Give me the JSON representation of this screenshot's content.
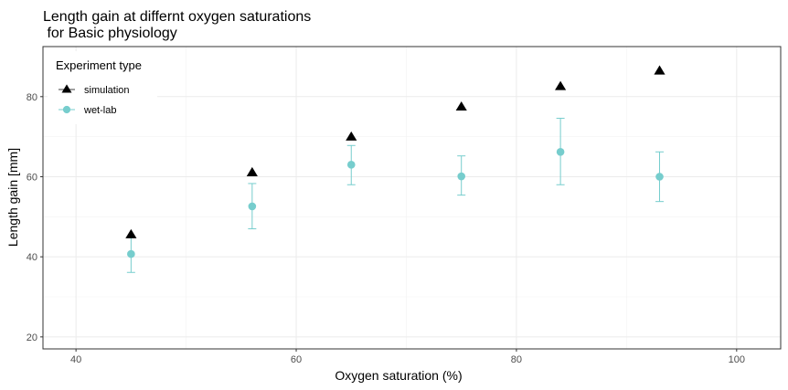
{
  "chart_data": {
    "type": "scatter",
    "title": [
      "Length gain at differnt oxygen saturations",
      " for Basic physiology"
    ],
    "xlabel": "Oxygen saturation (%)",
    "ylabel": "Length gain [mm]",
    "xlim": [
      37,
      104
    ],
    "ylim": [
      17,
      92.5
    ],
    "x_ticks": [
      40,
      60,
      80,
      100
    ],
    "y_ticks": [
      20,
      40,
      60,
      80
    ],
    "x_tick_labels": [
      "40",
      "60",
      "80",
      "100"
    ],
    "y_tick_labels": [
      "20",
      "40",
      "60",
      "80"
    ],
    "grid": true,
    "legend": {
      "title": "Experiment type",
      "position": "top-left",
      "entries": [
        "simulation",
        "wet-lab"
      ]
    },
    "series": [
      {
        "name": "simulation",
        "marker": "triangle",
        "color": "#000000",
        "x": [
          45,
          56,
          65,
          75,
          84,
          93
        ],
        "y": [
          45.5,
          61.0,
          69.9,
          77.4,
          82.5,
          86.4
        ]
      },
      {
        "name": "wet-lab",
        "marker": "circle",
        "color": "#76CDCD",
        "x": [
          45,
          56,
          65,
          75,
          84,
          93
        ],
        "y": [
          40.7,
          52.6,
          63.0,
          60.1,
          66.2,
          60.0
        ],
        "error_low": [
          36.1,
          47.0,
          58.0,
          55.4,
          58.0,
          53.8
        ],
        "error_high": [
          45.0,
          58.3,
          67.8,
          65.2,
          74.6,
          66.2
        ]
      }
    ]
  }
}
